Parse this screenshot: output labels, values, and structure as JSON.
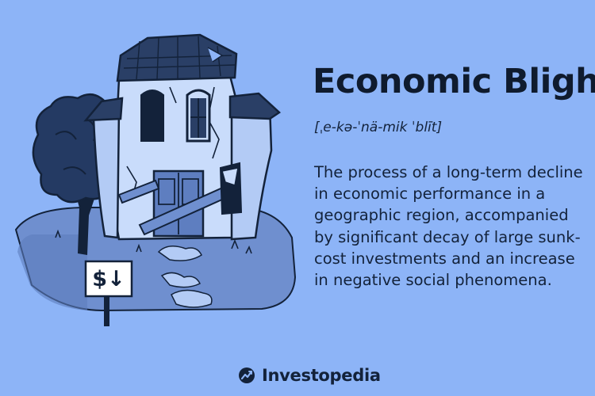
{
  "term": {
    "title": "Economic Blight",
    "pronunciation": "[ˌe-kə-ˈnä-mik ˈblīt]",
    "definition": "The process of a long-term decline in economic performance in a geographic region, accompanied by significant decay of large sunk-cost investments and an increase in negative social phenomena."
  },
  "illustration": {
    "sign_text": "$↓"
  },
  "brand": {
    "name": "Investopedia",
    "icon": "investopedia-logo-icon"
  },
  "colors": {
    "background": "#8db4f7",
    "ink": "#13223a",
    "ground": "#6f8fcf",
    "house_wall": "#c9dcfb",
    "roof": "#2a3f66"
  }
}
